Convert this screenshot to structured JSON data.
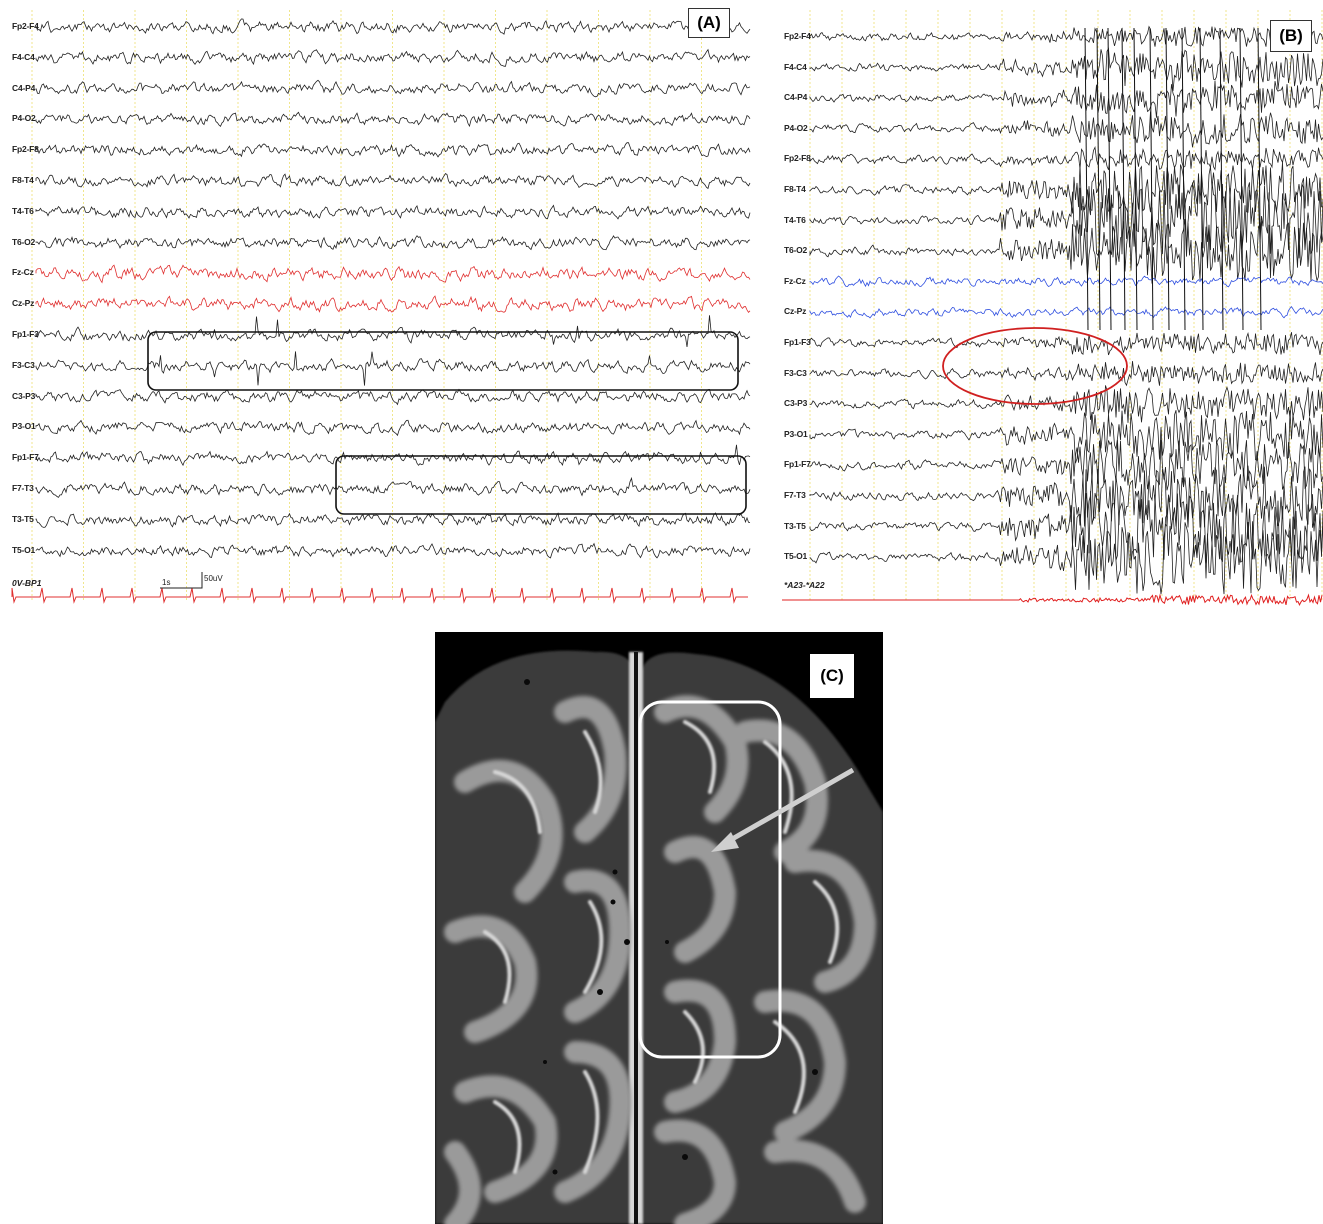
{
  "panel_a": {
    "tag": "(A)",
    "channels": [
      "Fp2-F4",
      "F4-C4",
      "C4-P4",
      "P4-O2",
      "Fp2-F8",
      "F8-T4",
      "T4-T6",
      "T6-O2",
      "Fz-Cz",
      "Cz-Pz",
      "Fp1-F3",
      "F3-C3",
      "C3-P3",
      "P3-O1",
      "Fp1-F7",
      "F7-T3",
      "T3-T5",
      "T5-O1"
    ],
    "highlight_channels": [
      "Fz-Cz",
      "Cz-Pz"
    ],
    "highlight_color": "#e03030",
    "bottom_label": "0V-BP1",
    "scale_time": "1s",
    "scale_amp": "50uV"
  },
  "panel_b": {
    "tag": "(B)",
    "channels": [
      "Fp2-F4",
      "F4-C4",
      "C4-P4",
      "P4-O2",
      "Fp2-F8",
      "F8-T4",
      "T4-T6",
      "T6-O2",
      "Fz-Cz",
      "Cz-Pz",
      "Fp1-F3",
      "F3-C3",
      "C3-P3",
      "P3-O1",
      "Fp1-F7",
      "F7-T3",
      "T3-T5",
      "T5-O1"
    ],
    "highlight_channels": [
      "Fz-Cz",
      "Cz-Pz"
    ],
    "highlight_color": "#3050e0",
    "bottom_label": "*A23-*A22",
    "ecg_color": "#e02020",
    "ellipse_color": "#d02020"
  },
  "panel_c": {
    "tag": "(C)"
  }
}
